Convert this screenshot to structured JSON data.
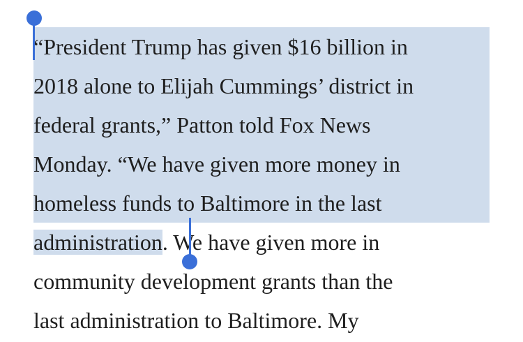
{
  "selected_lines": [
    "“President Trump has given $16 billion in",
    "2018 alone to Elijah Cummings’ district in",
    "federal grants,” Patton told Fox News",
    "Monday. “We have given more money in",
    "homeless funds to Baltimore in the last",
    "administration"
  ],
  "unselected_lines": [
    ". We have given more in",
    "community development grants than the",
    "last administration to Baltimore. My"
  ]
}
